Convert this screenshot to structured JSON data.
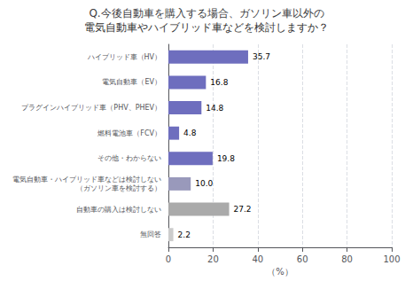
{
  "chart_data": {
    "type": "bar",
    "orientation": "horizontal",
    "title": "Q.今後自動車を購入する場合、ガソリン車以外の",
    "subtitle": "電気自動車やハイブリッド車などを検討しますか？",
    "categories": [
      "ハイブリッド車（HV）",
      "電気自動車（EV）",
      "プラグインハイブリッド車（PHV、PHEV）",
      "燃料電池車（FCV）",
      "その他・わからない",
      "電気自動車・ハイブリッド車などは検討しない\n（ガソリン車を検討する）",
      "自動車の購入は検討しない",
      "無回答"
    ],
    "values": [
      35.7,
      16.8,
      14.8,
      4.8,
      19.8,
      10.0,
      27.2,
      2.2
    ],
    "value_labels": [
      "35.7",
      "16.8",
      "14.8",
      "4.8",
      "19.8",
      "10.0",
      "27.2",
      "2.2"
    ],
    "colors": [
      "#6E6EBE",
      "#6E6EBE",
      "#6E6EBE",
      "#6E6EBE",
      "#6E6EBE",
      "#9999BB",
      "#AAAAAA",
      "#CCCCCC"
    ],
    "xlabel": "（%）",
    "xlim": [
      0,
      100
    ],
    "xticks": [
      0,
      20,
      40,
      60,
      80,
      100
    ],
    "grid": true,
    "data_labels": true
  }
}
